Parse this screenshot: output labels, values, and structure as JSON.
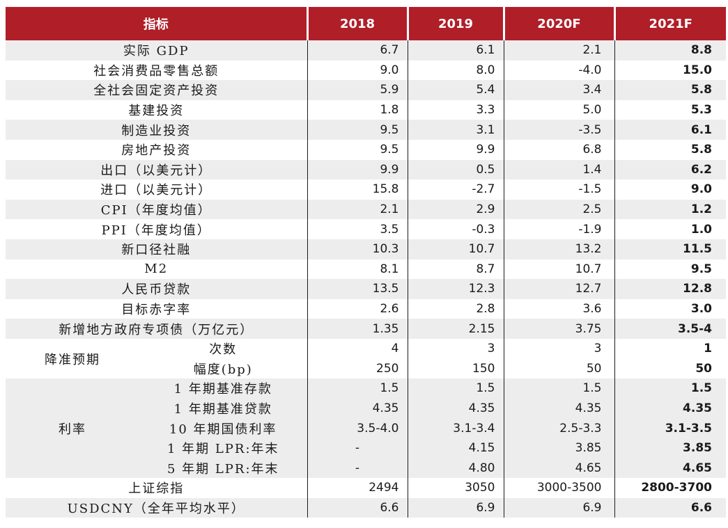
{
  "style": {
    "header_bg": "#B01E28",
    "header_text": "#FFFFFF",
    "stripe": "#EDEDED",
    "divider": "#1A1A1A",
    "body_text": "#1A1A1A"
  },
  "chart_data": {
    "type": "table",
    "title": "",
    "legend": "none",
    "columns": [
      "指标",
      "2018",
      "2019",
      "2020F",
      "2021F"
    ],
    "bold_column": "2021F",
    "rows": [
      {
        "indicator": "实际 GDP",
        "values": [
          "6.7",
          "6.1",
          "2.1",
          "8.8"
        ]
      },
      {
        "indicator": "社会消费品零售总额",
        "values": [
          "9.0",
          "8.0",
          "-4.0",
          "15.0"
        ]
      },
      {
        "indicator": "全社会固定资产投资",
        "values": [
          "5.9",
          "5.4",
          "3.4",
          "5.8"
        ]
      },
      {
        "indicator": "基建投资",
        "values": [
          "1.8",
          "3.3",
          "5.0",
          "5.3"
        ]
      },
      {
        "indicator": "制造业投资",
        "values": [
          "9.5",
          "3.1",
          "-3.5",
          "6.1"
        ]
      },
      {
        "indicator": "房地产投资",
        "values": [
          "9.5",
          "9.9",
          "6.8",
          "5.8"
        ]
      },
      {
        "indicator": "出口（以美元计）",
        "values": [
          "9.9",
          "0.5",
          "1.4",
          "6.2"
        ]
      },
      {
        "indicator": "进口（以美元计）",
        "values": [
          "15.8",
          "-2.7",
          "-1.5",
          "9.0"
        ]
      },
      {
        "indicator": "CPI（年度均值）",
        "values": [
          "2.1",
          "2.9",
          "2.5",
          "1.2"
        ]
      },
      {
        "indicator": "PPI（年度均值）",
        "values": [
          "3.5",
          "-0.3",
          "-1.9",
          "1.0"
        ]
      },
      {
        "indicator": "新口径社融",
        "values": [
          "10.3",
          "10.7",
          "13.2",
          "11.5"
        ]
      },
      {
        "indicator": "M2",
        "values": [
          "8.1",
          "8.7",
          "10.7",
          "9.5"
        ]
      },
      {
        "indicator": "人民币贷款",
        "values": [
          "13.5",
          "12.3",
          "12.7",
          "12.8"
        ]
      },
      {
        "indicator": "目标赤字率",
        "values": [
          "2.6",
          "2.8",
          "3.6",
          "3.0"
        ]
      },
      {
        "indicator": "新增地方政府专项债（万亿元）",
        "values": [
          "1.35",
          "2.15",
          "3.75",
          "3.5-4"
        ]
      },
      {
        "group": "降准预期",
        "indicator": "次数",
        "values": [
          "4",
          "3",
          "3",
          "1"
        ]
      },
      {
        "group": "降准预期",
        "indicator": "幅度(bp)",
        "values": [
          "250",
          "150",
          "50",
          "50"
        ]
      },
      {
        "group": "利率",
        "indicator": "1 年期基准存款",
        "values": [
          "1.5",
          "1.5",
          "1.5",
          "1.5"
        ]
      },
      {
        "group": "利率",
        "indicator": "1 年期基准贷款",
        "values": [
          "4.35",
          "4.35",
          "4.35",
          "4.35"
        ]
      },
      {
        "group": "利率",
        "indicator": "10 年期国债利率",
        "values": [
          "3.5-4.0",
          "3.1-3.4",
          "2.5-3.3",
          "3.1-3.5"
        ]
      },
      {
        "group": "利率",
        "indicator": "1 年期 LPR:年末",
        "values": [
          "-",
          "4.15",
          "3.85",
          "3.85"
        ]
      },
      {
        "group": "利率",
        "indicator": "5 年期 LPR:年末",
        "values": [
          "-",
          "4.80",
          "4.65",
          "4.65"
        ]
      },
      {
        "indicator": "上证综指",
        "values": [
          "2494",
          "3050",
          "3000-3500",
          "2800-3700"
        ]
      },
      {
        "indicator": "USDCNY（全年平均水平）",
        "values": [
          "6.6",
          "6.9",
          "6.9",
          "6.6"
        ]
      }
    ]
  }
}
